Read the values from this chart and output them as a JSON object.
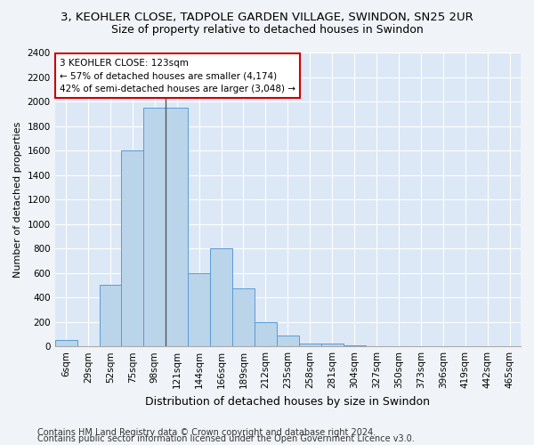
{
  "title1": "3, KEOHLER CLOSE, TADPOLE GARDEN VILLAGE, SWINDON, SN25 2UR",
  "title2": "Size of property relative to detached houses in Swindon",
  "xlabel": "Distribution of detached houses by size in Swindon",
  "ylabel": "Number of detached properties",
  "categories": [
    "6sqm",
    "29sqm",
    "52sqm",
    "75sqm",
    "98sqm",
    "121sqm",
    "144sqm",
    "166sqm",
    "189sqm",
    "212sqm",
    "235sqm",
    "258sqm",
    "281sqm",
    "304sqm",
    "327sqm",
    "350sqm",
    "373sqm",
    "396sqm",
    "419sqm",
    "442sqm",
    "465sqm"
  ],
  "values": [
    50,
    0,
    500,
    1600,
    1950,
    1950,
    600,
    800,
    475,
    195,
    85,
    25,
    20,
    10,
    0,
    0,
    0,
    0,
    0,
    0,
    0
  ],
  "bar_color": "#bad4ea",
  "bar_edge_color": "#5b9bd5",
  "highlight_line_index": 5,
  "annotation_text": "3 KEOHLER CLOSE: 123sqm\n← 57% of detached houses are smaller (4,174)\n42% of semi-detached houses are larger (3,048) →",
  "annotation_box_color": "#ffffff",
  "annotation_box_edge": "#cc0000",
  "ylim": [
    0,
    2400
  ],
  "yticks": [
    0,
    200,
    400,
    600,
    800,
    1000,
    1200,
    1400,
    1600,
    1800,
    2000,
    2200,
    2400
  ],
  "footer1": "Contains HM Land Registry data © Crown copyright and database right 2024.",
  "footer2": "Contains public sector information licensed under the Open Government Licence v3.0.",
  "bg_color": "#f0f4f8",
  "plot_bg_color": "#dce8f5",
  "grid_color": "#ffffff",
  "title1_fontsize": 9.5,
  "title2_fontsize": 9,
  "xlabel_fontsize": 9,
  "ylabel_fontsize": 8,
  "tick_fontsize": 7.5,
  "footer_fontsize": 7
}
